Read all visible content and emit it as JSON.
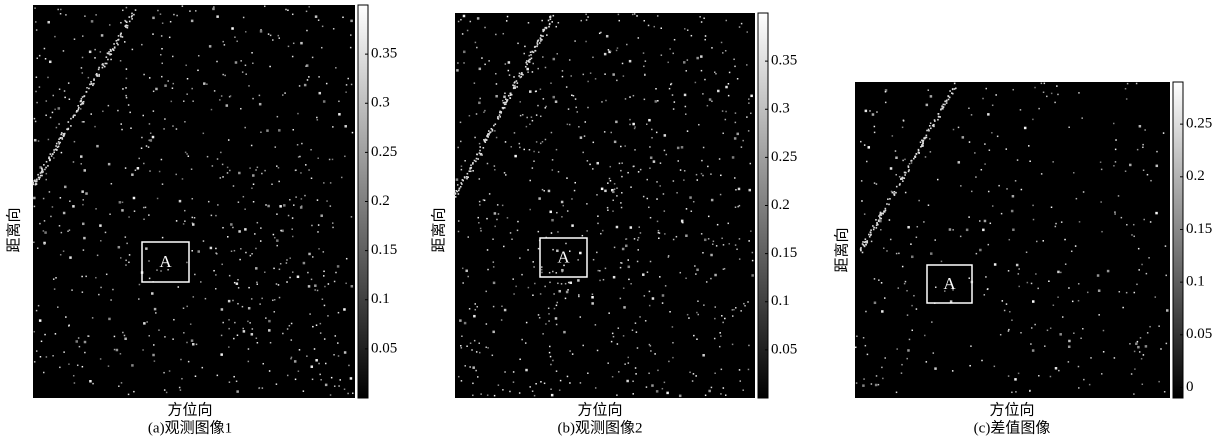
{
  "panels": [
    {
      "caption": "(a)观测图像1",
      "xlabel": "方位向",
      "ylabel": "距离向",
      "box_label": "A",
      "colorbar": {
        "lim": [
          0,
          0.4
        ],
        "ticks": [
          0.05,
          0.1,
          0.15,
          0.2,
          0.25,
          0.3,
          0.35
        ]
      }
    },
    {
      "caption": "(b)观测图像2",
      "xlabel": "方位向",
      "ylabel": "距离向",
      "box_label": "A",
      "colorbar": {
        "lim": [
          0,
          0.4
        ],
        "ticks": [
          0.05,
          0.1,
          0.15,
          0.2,
          0.25,
          0.3,
          0.35
        ]
      }
    },
    {
      "caption": "(c)差值图像",
      "xlabel": "方位向",
      "ylabel": "距离向",
      "box_label": "A",
      "colorbar": {
        "lim": [
          -0.01,
          0.29
        ],
        "ticks": [
          0,
          0.05,
          0.1,
          0.15,
          0.2,
          0.25
        ]
      }
    }
  ]
}
